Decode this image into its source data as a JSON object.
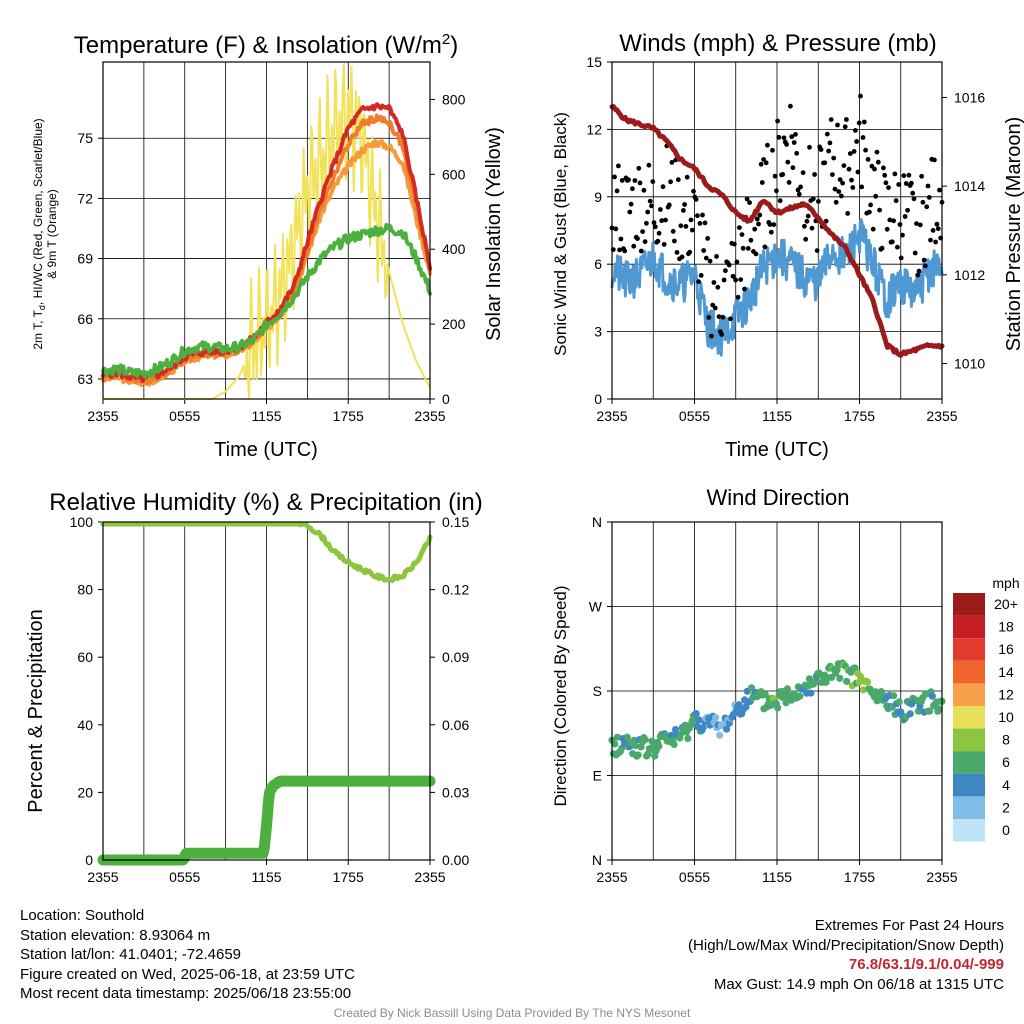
{
  "palette": {
    "temp": "#d42a26",
    "dewpoint": "#4caf3e",
    "heat_index": "#ef7d2a",
    "temp9m": "#f59a3a",
    "solar": "#f2e25a",
    "wind": "#4f98d2",
    "gust": "#000000",
    "pressure": "#9b1b1b",
    "rh": "#8cc63f",
    "precip": "#4caf3e"
  },
  "panels": {
    "temperature": {
      "title": "Temperature (F) & Insolation (W/m",
      "title_sup": "2",
      "title_end": ")",
      "ylabel_left_1": "2m T, T",
      "ylabel_left_sub": "d",
      "ylabel_left_2": ", HI/WC (Red, Green, Scarlet/Blue)",
      "ylabel_left_3": "& 9m T (Orange)",
      "ylabel_right": "Solar Insolation (Yellow)",
      "xlabel": "Time (UTC)",
      "xticks": [
        "2355",
        "0555",
        "1155",
        "1755",
        "2355"
      ],
      "yticks_left": [
        "63",
        "66",
        "69",
        "72",
        "75"
      ],
      "yticks_right": [
        "0",
        "200",
        "400",
        "600",
        "800"
      ]
    },
    "winds": {
      "title": "Winds (mph) & Pressure (mb)",
      "ylabel_left": "Sonic Wind & Gust (Blue, Black)",
      "ylabel_right": "Station Pressure (Maroon)",
      "xlabel": "Time (UTC)",
      "xticks": [
        "2355",
        "0555",
        "1155",
        "1755",
        "2355"
      ],
      "yticks_left": [
        "0",
        "3",
        "6",
        "9",
        "12",
        "15"
      ],
      "yticks_right": [
        "1010",
        "1012",
        "1014",
        "1016"
      ]
    },
    "humidity": {
      "title": "Relative Humidity (%) & Precipitation (in)",
      "ylabel_left": "Percent & Precipitation",
      "xticks": [
        "2355",
        "0555",
        "1155",
        "1755",
        "2355"
      ],
      "yticks_left": [
        "0",
        "20",
        "40",
        "60",
        "80",
        "100"
      ],
      "yticks_right": [
        "0.00",
        "0.03",
        "0.06",
        "0.09",
        "0.12",
        "0.15"
      ]
    },
    "direction": {
      "title": "Wind Direction",
      "ylabel_left": "Direction (Colored By Speed)",
      "xticks": [
        "2355",
        "0555",
        "1155",
        "1755",
        "2355"
      ],
      "yticks_left": [
        "N",
        "E",
        "S",
        "W",
        "N"
      ],
      "legend_title": "mph",
      "legend_labels": [
        "20+",
        "18",
        "16",
        "14",
        "12",
        "10",
        "8",
        "6",
        "4",
        "2",
        "0"
      ],
      "legend_colors": [
        "#9b1b1b",
        "#c41e24",
        "#e23b2e",
        "#f0652e",
        "#f7a04a",
        "#e8e05a",
        "#8cc63f",
        "#4aa86a",
        "#3f86c4",
        "#80bce6",
        "#bfe3f7"
      ]
    }
  },
  "chart_data": [
    {
      "type": "line",
      "panel": "temperature",
      "x_range_hours": [
        0,
        24
      ],
      "ylim": [
        62,
        78.8
      ],
      "y2lim": [
        0,
        900
      ],
      "series": [
        {
          "name": "Red",
          "axis": "left",
          "x": [
            0,
            1,
            2,
            3,
            4,
            5,
            6,
            7,
            8,
            9,
            10,
            11,
            12,
            13,
            14,
            15,
            16,
            17,
            18,
            19,
            20,
            21,
            22,
            23,
            24
          ],
          "values": [
            63.2,
            63.3,
            63.1,
            63.0,
            63.2,
            63.6,
            64.1,
            64.3,
            64.4,
            64.4,
            64.6,
            65.0,
            65.8,
            66.5,
            67.6,
            69.8,
            72.0,
            73.8,
            75.5,
            76.4,
            76.6,
            76.5,
            75.2,
            72.0,
            68.6
          ]
        },
        {
          "name": "Green",
          "axis": "left",
          "x": [
            0,
            1,
            2,
            3,
            4,
            5,
            6,
            7,
            8,
            9,
            10,
            11,
            12,
            13,
            14,
            15,
            16,
            17,
            18,
            19,
            20,
            21,
            22,
            23,
            24
          ],
          "values": [
            63.4,
            63.5,
            63.3,
            63.3,
            63.5,
            63.9,
            64.4,
            64.6,
            64.6,
            64.5,
            64.6,
            64.9,
            65.7,
            66.3,
            67.1,
            68.1,
            69.0,
            69.6,
            70.0,
            70.2,
            70.4,
            70.5,
            70.3,
            69.0,
            67.4
          ]
        },
        {
          "name": "Scarlet/Blue",
          "axis": "left",
          "x": [
            0,
            1,
            2,
            3,
            4,
            5,
            6,
            7,
            8,
            9,
            10,
            11,
            12,
            13,
            14,
            15,
            16,
            17,
            18,
            19,
            20,
            21,
            22,
            23,
            24
          ],
          "values": [
            63.1,
            63.2,
            63.0,
            62.9,
            63.1,
            63.5,
            64.0,
            64.2,
            64.3,
            64.3,
            64.5,
            64.9,
            65.7,
            66.4,
            67.4,
            69.4,
            71.6,
            73.2,
            74.7,
            75.7,
            76.0,
            75.8,
            74.6,
            71.6,
            68.5
          ]
        },
        {
          "name": "Orange",
          "axis": "left",
          "x": [
            0,
            1,
            2,
            3,
            4,
            5,
            6,
            7,
            8,
            9,
            10,
            11,
            12,
            13,
            14,
            15,
            16,
            17,
            18,
            19,
            20,
            21,
            22,
            23,
            24
          ],
          "values": [
            63.0,
            63.1,
            62.9,
            62.8,
            63.0,
            63.4,
            63.9,
            64.1,
            64.2,
            64.2,
            64.4,
            64.8,
            65.5,
            66.2,
            67.2,
            69.2,
            71.2,
            72.6,
            73.6,
            74.4,
            74.8,
            74.6,
            73.8,
            71.0,
            68.3
          ]
        },
        {
          "name": "Yellow",
          "axis": "right",
          "x": [
            0,
            1,
            2,
            3,
            4,
            5,
            6,
            7,
            8,
            9,
            10,
            11,
            12,
            13,
            14,
            15,
            16,
            17,
            18,
            19,
            20,
            21,
            22,
            23,
            24
          ],
          "values": [
            0,
            0,
            0,
            0,
            0,
            0,
            0,
            0,
            0,
            20,
            60,
            150,
            200,
            280,
            400,
            560,
            640,
            720,
            760,
            700,
            500,
            340,
            200,
            100,
            30
          ]
        }
      ]
    },
    {
      "type": "line",
      "panel": "winds",
      "x_range_hours": [
        0,
        24
      ],
      "ylim": [
        0,
        15
      ],
      "y2lim": [
        1009.2,
        1016.8
      ],
      "series": [
        {
          "name": "Blue",
          "axis": "left",
          "x": [
            0,
            1,
            2,
            3,
            4,
            5,
            6,
            7,
            8,
            9,
            10,
            11,
            12,
            13,
            14,
            15,
            16,
            17,
            18,
            19,
            20,
            21,
            22,
            23,
            24
          ],
          "values": [
            5.8,
            5.2,
            5.5,
            6.3,
            5.4,
            5.1,
            5.6,
            3.2,
            2.8,
            3.6,
            4.4,
            5.8,
            6.4,
            6.0,
            5.4,
            5.2,
            6.6,
            6.2,
            7.4,
            6.0,
            4.4,
            5.2,
            4.6,
            5.6,
            6.0
          ]
        },
        {
          "name": "Black",
          "axis": "left",
          "x": [
            0,
            1,
            2,
            3,
            4,
            5,
            6,
            7,
            8,
            9,
            10,
            11,
            12,
            13,
            14,
            15,
            16,
            17,
            18,
            19,
            20,
            21,
            22,
            23,
            24
          ],
          "values": [
            8.6,
            8.2,
            8.8,
            8.4,
            9.2,
            8.0,
            7.8,
            5.0,
            4.4,
            5.6,
            7.2,
            8.6,
            10.2,
            11.8,
            9.2,
            8.8,
            10.6,
            10.2,
            11.6,
            9.2,
            8.0,
            8.4,
            7.6,
            8.2,
            9.4
          ]
        },
        {
          "name": "Maroon",
          "axis": "right",
          "x": [
            0,
            1,
            2,
            3,
            4,
            5,
            6,
            7,
            8,
            9,
            10,
            11,
            12,
            13,
            14,
            15,
            16,
            17,
            18,
            19,
            20,
            21,
            22,
            23,
            24
          ],
          "values": [
            1015.8,
            1015.5,
            1015.4,
            1015.3,
            1015.0,
            1014.6,
            1014.4,
            1014.0,
            1013.8,
            1013.4,
            1013.2,
            1013.7,
            1013.4,
            1013.5,
            1013.6,
            1013.3,
            1012.9,
            1012.6,
            1012.0,
            1011.4,
            1010.4,
            1010.2,
            1010.3,
            1010.4,
            1010.4
          ]
        }
      ]
    },
    {
      "type": "line",
      "panel": "humidity",
      "x_range_hours": [
        0,
        24
      ],
      "ylim": [
        0,
        100
      ],
      "y2lim": [
        0,
        0.15
      ],
      "series": [
        {
          "axis": "left",
          "x": [
            0,
            2,
            4,
            6,
            8,
            10,
            12,
            14,
            15,
            16,
            17,
            18,
            19,
            20,
            21,
            22,
            23,
            24
          ],
          "values": [
            100,
            100,
            100,
            100,
            100,
            100,
            100,
            100,
            99,
            96,
            91,
            88,
            86,
            84,
            83,
            84,
            88,
            95
          ]
        },
        {
          "axis": "right",
          "x": [
            0,
            3,
            5.9,
            6.1,
            9,
            11.8,
            12.0,
            12.2,
            12.5,
            13,
            18,
            24
          ],
          "values": [
            0.0,
            0.0,
            0.0,
            0.003,
            0.003,
            0.003,
            0.015,
            0.03,
            0.033,
            0.035,
            0.035,
            0.035
          ]
        }
      ]
    },
    {
      "type": "scatter",
      "panel": "direction",
      "x_range_hours": [
        0,
        24
      ],
      "ylim": [
        0,
        360
      ],
      "series": [
        {
          "x": [
            0,
            1,
            2,
            3,
            4,
            5,
            6,
            7,
            8,
            9,
            10,
            11,
            12,
            13,
            14,
            15,
            16,
            17,
            18,
            19,
            20,
            21,
            22,
            23,
            24
          ],
          "values": [
            120,
            125,
            120,
            118,
            130,
            130,
            150,
            145,
            140,
            160,
            175,
            168,
            170,
            178,
            185,
            193,
            198,
            200,
            192,
            175,
            170,
            158,
            168,
            168,
            170
          ]
        }
      ]
    }
  ],
  "footer": {
    "location": "Location: Southold",
    "elevation": "Station elevation: 8.93064 m",
    "latlon": "Station lat/lon: 41.0401; -72.4659",
    "created": "Figure created on Wed, 2025-06-18, at 23:59 UTC",
    "recent": "Most recent data timestamp: 2025/06/18 23:55:00",
    "extremes_title": "Extremes For Past 24 Hours",
    "extremes_sub": "(High/Low/Max Wind/Precipitation/Snow Depth)",
    "extremes_values": "76.8/63.1/9.1/0.04/-999",
    "max_gust": "Max Gust: 14.9 mph On 06/18 at 1315 UTC",
    "credit": "Created By Nick Bassill Using Data Provided By The NYS Mesonet"
  }
}
